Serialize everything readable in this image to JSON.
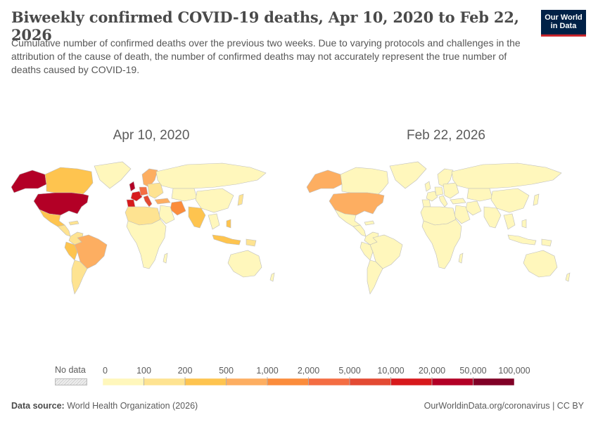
{
  "header": {
    "title": "Biweekly confirmed COVID-19 deaths, Apr 10, 2020 to Feb 22, 2026",
    "subtitle": "Cumulative number of confirmed deaths over the previous two weeks. Due to varying protocols and challenges in the attribution of the cause of death, the number of confirmed deaths may not accurately represent the true number of deaths caused by COVID-19.",
    "logo_line1": "Our World",
    "logo_line2": "in Data"
  },
  "maps": {
    "left_date": "Apr 10, 2020",
    "right_date": "Feb 22, 2026"
  },
  "legend": {
    "no_data_label": "No data",
    "bins": [
      "0",
      "100",
      "200",
      "500",
      "1,000",
      "2,000",
      "5,000",
      "10,000",
      "20,000",
      "50,000",
      "100,000"
    ],
    "colors": [
      "#fff7bc",
      "#fee391",
      "#fec44f",
      "#fdae61",
      "#fb8c3c",
      "#f46d43",
      "#e34a33",
      "#d7191c",
      "#b30026",
      "#800026"
    ]
  },
  "footer": {
    "source_label": "Data source:",
    "source_value": "World Health Organization (2026)",
    "link": "OurWorldinData.org/coronavirus | CC BY"
  },
  "colors": {
    "base_fill": "#fff7bc",
    "nodata_fill": "#f0f0f0",
    "border": "#bdbdbd"
  },
  "chart_data": {
    "type": "choropleth",
    "maps": [
      {
        "date": "Apr 10, 2020",
        "regions": [
          {
            "name": "United States",
            "bin": "20,000–50,000"
          },
          {
            "name": "Canada",
            "bin": "200–500"
          },
          {
            "name": "Alaska",
            "bin": "20,000–50,000"
          },
          {
            "name": "Mexico",
            "bin": "200–500"
          },
          {
            "name": "Brazil",
            "bin": "500–1,000"
          },
          {
            "name": "Peru",
            "bin": "200–500"
          },
          {
            "name": "United Kingdom",
            "bin": "20,000–50,000"
          },
          {
            "name": "France",
            "bin": "10,000–20,000"
          },
          {
            "name": "Spain",
            "bin": "10,000–20,000"
          },
          {
            "name": "Italy",
            "bin": "5,000–10,000"
          },
          {
            "name": "Germany",
            "bin": "2,000–5,000"
          },
          {
            "name": "Iran",
            "bin": "1,000–2,000"
          },
          {
            "name": "Turkey",
            "bin": "500–1,000"
          },
          {
            "name": "Sweden",
            "bin": "500–1,000"
          },
          {
            "name": "India",
            "bin": "200–500"
          },
          {
            "name": "Indonesia",
            "bin": "200–500"
          },
          {
            "name": "Philippines",
            "bin": "200–500"
          },
          {
            "name": "Algeria",
            "bin": "100–200"
          },
          {
            "name": "Egypt",
            "bin": "100–200"
          }
        ]
      },
      {
        "date": "Feb 22, 2026",
        "regions": [
          {
            "name": "United States",
            "bin": "500–1,000"
          },
          {
            "name": "Alaska",
            "bin": "500–1,000"
          },
          {
            "name": "Rest of world",
            "bin": "0–100"
          }
        ]
      }
    ]
  }
}
